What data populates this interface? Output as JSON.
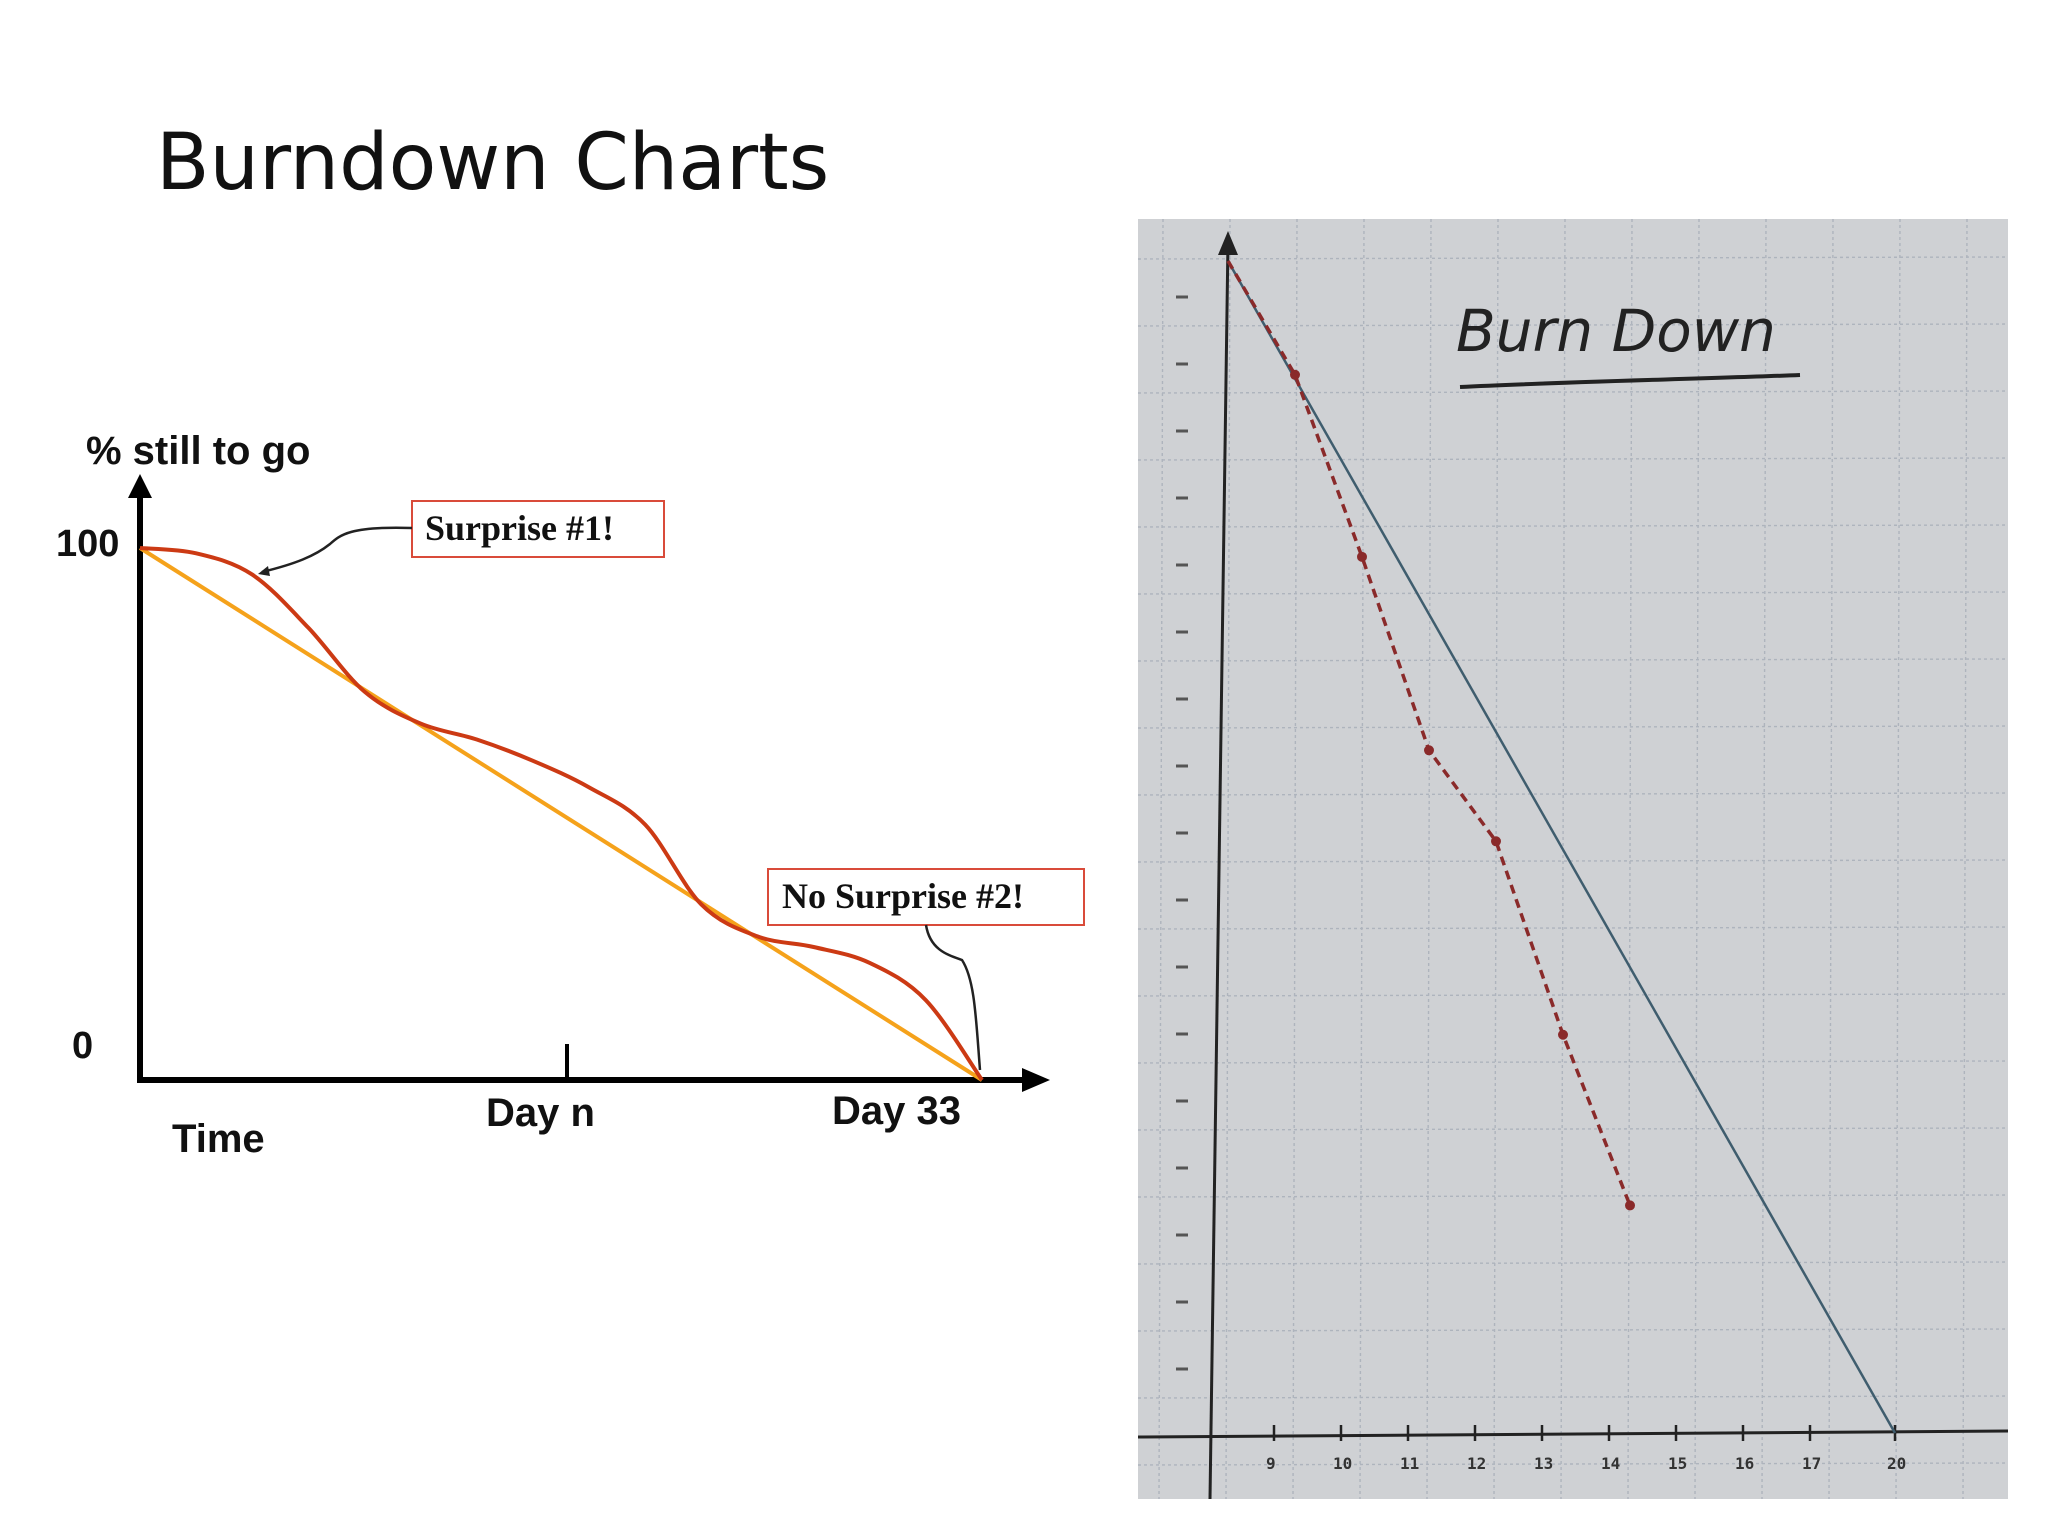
{
  "slide": {
    "title": "Burndown Charts"
  },
  "chart_data": [
    {
      "type": "line",
      "ylabel": "% still to go",
      "xlabel": "Time",
      "y_ticks": [
        "100",
        "0"
      ],
      "x_tick_labels": [
        "Day n",
        "Day 33"
      ],
      "ylim": [
        0,
        100
      ],
      "series": [
        {
          "values": [
            100,
            0
          ],
          "color": "#f5a21b"
        },
        {
          "values": [
            100,
            99,
            95,
            85,
            73,
            67,
            64,
            60,
            55,
            48,
            33,
            27,
            25,
            22,
            15,
            0
          ],
          "color": "#cc3a14"
        }
      ],
      "annotations": [
        {
          "text": "Surprise #1!"
        },
        {
          "text": "No Surprise #2!"
        }
      ]
    },
    {
      "type": "line",
      "title": "Burn Down",
      "x_ticks": [
        "9",
        "10",
        "11",
        "12",
        "13",
        "14",
        "15",
        "16",
        "17",
        "20"
      ],
      "series": [
        {
          "style": "solid",
          "color": "#3f5d6e",
          "values": [
            206,
            0
          ]
        },
        {
          "style": "dashed",
          "color": "#8a2a2a",
          "values": [
            206,
            186,
            154,
            120,
            104,
            70,
            40
          ]
        }
      ]
    }
  ]
}
